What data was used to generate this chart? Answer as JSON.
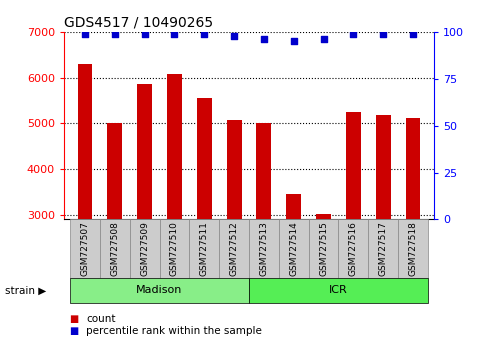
{
  "title": "GDS4517 / 10490265",
  "samples": [
    "GSM727507",
    "GSM727508",
    "GSM727509",
    "GSM727510",
    "GSM727511",
    "GSM727512",
    "GSM727513",
    "GSM727514",
    "GSM727515",
    "GSM727516",
    "GSM727517",
    "GSM727518"
  ],
  "counts": [
    6300,
    5000,
    5850,
    6080,
    5550,
    5080,
    5000,
    3450,
    3020,
    5250,
    5180,
    5120
  ],
  "percentiles": [
    99,
    99,
    99,
    99,
    99,
    98,
    96,
    95,
    96,
    99,
    99,
    99
  ],
  "bar_color": "#cc0000",
  "dot_color": "#0000cc",
  "ylim_left": [
    2900,
    7000
  ],
  "ylim_right": [
    0,
    100
  ],
  "yticks_left": [
    3000,
    4000,
    5000,
    6000,
    7000
  ],
  "yticks_right": [
    0,
    25,
    50,
    75,
    100
  ],
  "groups": [
    {
      "label": "Madison",
      "start": 0,
      "end": 6,
      "color": "#88ee88"
    },
    {
      "label": "ICR",
      "start": 6,
      "end": 12,
      "color": "#55ee55"
    }
  ],
  "legend_count": "count",
  "legend_percentile": "percentile rank within the sample",
  "bg_color": "#ffffff",
  "bar_width": 0.5,
  "base_value": 2900,
  "cell_color": "#cccccc",
  "cell_edge_color": "#888888"
}
